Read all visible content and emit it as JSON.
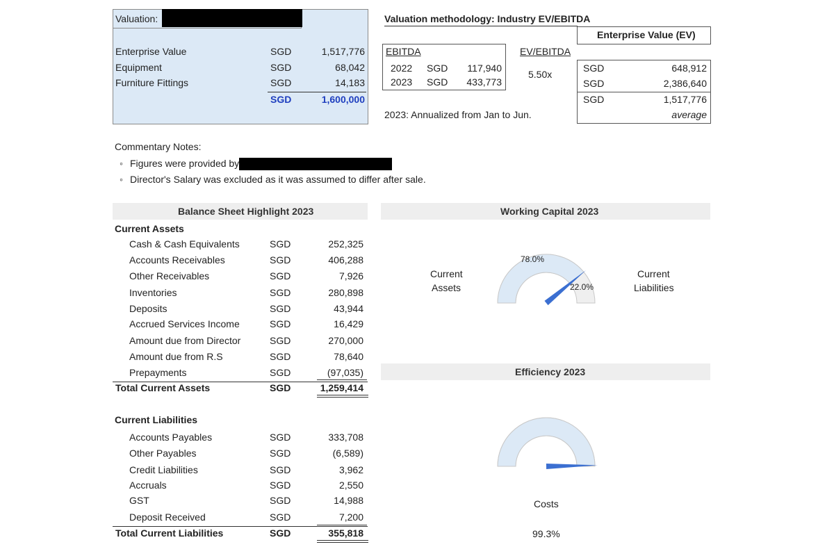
{
  "valuation": {
    "title": "Valuation:",
    "rows": [
      {
        "label": "Enterprise Value",
        "cur": "SGD",
        "value": "1,517,776"
      },
      {
        "label": "Equipment",
        "cur": "SGD",
        "value": "68,042"
      },
      {
        "label": "Furniture Fittings",
        "cur": "SGD",
        "value": "14,183"
      }
    ],
    "total": {
      "cur": "SGD",
      "value": "1,600,000"
    }
  },
  "methodology": {
    "title": "Valuation methodology: Industry EV/EBITDA",
    "ebitda_header": "EBITDA",
    "multiple_header": "EV/EBITDA",
    "rows": [
      {
        "year": "2022",
        "cur": "SGD",
        "value": "117,940"
      },
      {
        "year": "2023",
        "cur": "SGD",
        "value": "433,773"
      }
    ],
    "multiple": "5.50x",
    "note": "2023: Annualized from Jan to Jun."
  },
  "ev": {
    "title": "Enterprise Value (EV)",
    "rows": [
      {
        "cur": "SGD",
        "value": "648,912"
      },
      {
        "cur": "SGD",
        "value": "2,386,640"
      },
      {
        "cur": "SGD",
        "value": "1,517,776"
      }
    ],
    "footer": "average"
  },
  "commentary": {
    "title": "Commentary Notes:",
    "bullet": "◦",
    "items": [
      "Figures were provided by",
      "Director's Salary was excluded as it was assumed to differ after sale."
    ]
  },
  "balance": {
    "title": "Balance Sheet Highlight 2023",
    "assets_title": "Current Assets",
    "assets": [
      {
        "label": "Cash & Cash Equivalents",
        "cur": "SGD",
        "value": "252,325"
      },
      {
        "label": "Accounts Receivables",
        "cur": "SGD",
        "value": "406,288"
      },
      {
        "label": "Other Receivables",
        "cur": "SGD",
        "value": "7,926"
      },
      {
        "label": "Inventories",
        "cur": "SGD",
        "value": "280,898"
      },
      {
        "label": "Deposits",
        "cur": "SGD",
        "value": "43,944"
      },
      {
        "label": "Accrued Services Income",
        "cur": "SGD",
        "value": "16,429"
      },
      {
        "label": "Amount due from Director",
        "cur": "SGD",
        "value": "270,000"
      },
      {
        "label": "Amount due from R.S",
        "cur": "SGD",
        "value": "78,640"
      },
      {
        "label": "Prepayments",
        "cur": "SGD",
        "value": "(97,035)"
      }
    ],
    "assets_total": {
      "label": "Total Current Assets",
      "cur": "SGD",
      "value": "1,259,414"
    },
    "liab_title": "Current Liabilities",
    "liabilities": [
      {
        "label": "Accounts Payables",
        "cur": "SGD",
        "value": "333,708"
      },
      {
        "label": "Other Payables",
        "cur": "SGD",
        "value": "(6,589)"
      },
      {
        "label": "Credit Liabilities",
        "cur": "SGD",
        "value": "3,962"
      },
      {
        "label": "Accruals",
        "cur": "SGD",
        "value": "2,550"
      },
      {
        "label": "GST",
        "cur": "SGD",
        "value": "14,988"
      },
      {
        "label": "Deposit Received",
        "cur": "SGD",
        "value": "7,200"
      }
    ],
    "liab_total": {
      "label": "Total Current Liabilities",
      "cur": "SGD",
      "value": "355,818"
    }
  },
  "working_capital": {
    "title": "Working Capital 2023",
    "left_label_1": "Current",
    "left_label_2": "Assets",
    "right_label_1": "Current",
    "right_label_2": "Liabilities",
    "assets_pct_label": "78.0%",
    "liab_pct_label": "22.0%",
    "assets_pct": 78.0
  },
  "efficiency": {
    "title": "Efficiency 2023",
    "costs_label": "Costs",
    "costs_pct_label": "99.3%",
    "costs_pct": 99.3
  },
  "colors": {
    "panel_bg": "#dce9f6",
    "gauge_fill": "#dce9f6",
    "gauge_track": "#efefef",
    "needle": "#3b6fd1",
    "total_blue": "#1f3fbf"
  }
}
